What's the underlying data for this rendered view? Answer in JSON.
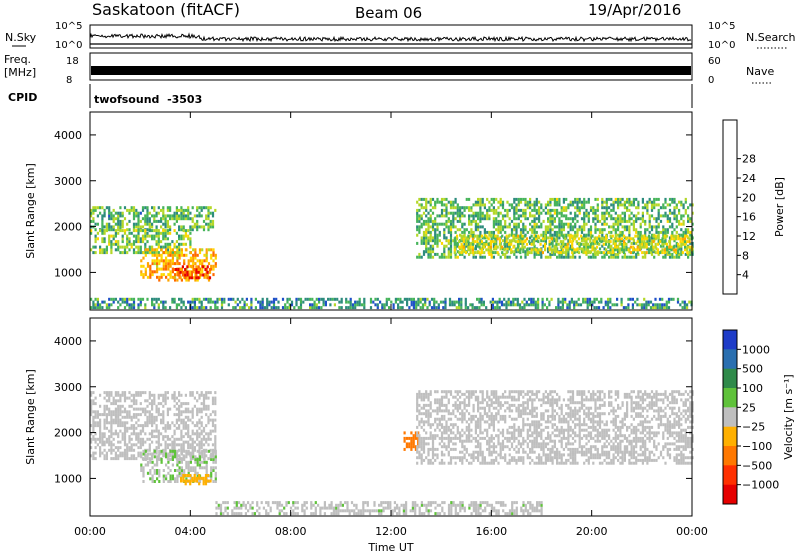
{
  "header": {
    "station": "Saskatoon (fitACF)",
    "beam": "Beam 06",
    "date": "19/Apr/2016"
  },
  "noise_panel": {
    "left_label": "N.Sky",
    "right_label": "N.Search",
    "left_tick_top": "10^5",
    "left_tick_bottom": "10^0",
    "right_tick_top": "10^5",
    "right_tick_bottom": "10^0"
  },
  "freq_panel": {
    "left_label": "Freq.",
    "left_unit": "[MHz]",
    "left_tick_top": "18",
    "left_tick_bottom": "8",
    "right_label": "Nave",
    "right_tick_top": "60",
    "right_tick_bottom": "0"
  },
  "cpid_panel": {
    "label": "CPID",
    "value": "twofsound  -3503"
  },
  "axes": {
    "xlabel": "Time UT",
    "xticks": [
      "00:00",
      "04:00",
      "08:00",
      "12:00",
      "16:00",
      "20:00",
      "00:00"
    ],
    "ylabel": "Slant Range [km]",
    "yticks": [
      "1000",
      "2000",
      "3000",
      "4000"
    ]
  },
  "power_colorbar": {
    "label": "Power [dB]",
    "ticks": [
      "4",
      "8",
      "12",
      "16",
      "20",
      "24",
      "28"
    ],
    "colors": [
      "#1414ff",
      "#1e50c8",
      "#2d8c7d",
      "#46b45a",
      "#b4d728",
      "#ffd700",
      "#ffa500",
      "#ff6a00",
      "#e60000"
    ]
  },
  "velocity_colorbar": {
    "label": "Velocity [m s⁻¹]",
    "ticks": [
      "1000",
      "500",
      "100",
      "25",
      "−25",
      "−100",
      "−500",
      "−1000"
    ],
    "colors": [
      "#1e3cc8",
      "#2a6fb0",
      "#2f8a4a",
      "#5fc23a",
      "#bfbfbf",
      "#ffb000",
      "#ff7800",
      "#ff3000",
      "#e60000"
    ]
  },
  "chart_data": [
    {
      "type": "heatmap",
      "title": "Power",
      "xlabel": "Time UT",
      "ylabel": "Slant Range [km]",
      "xlim": [
        0,
        24
      ],
      "ylim": [
        180,
        4500
      ],
      "colorbar_label": "Power [dB]",
      "colorbar_range": [
        0,
        32
      ],
      "regions": [
        {
          "t0": 0.0,
          "t1": 5.0,
          "r0": 1900,
          "r1": 2400,
          "value": 12
        },
        {
          "t0": 0.0,
          "t1": 4.0,
          "r0": 1400,
          "r1": 1900,
          "value": 14
        },
        {
          "t0": 2.0,
          "t1": 5.0,
          "r0": 800,
          "r1": 1500,
          "value": 22
        },
        {
          "t0": 3.3,
          "t1": 4.8,
          "r0": 850,
          "r1": 1100,
          "value": 28
        },
        {
          "t0": 13.0,
          "t1": 24.0,
          "r0": 1300,
          "r1": 2600,
          "value": 13
        },
        {
          "t0": 14.5,
          "t1": 24.0,
          "r0": 1400,
          "r1": 1800,
          "value": 17
        },
        {
          "t0": 0.0,
          "t1": 24.0,
          "r0": 200,
          "r1": 400,
          "value": 10
        }
      ]
    },
    {
      "type": "heatmap",
      "title": "Velocity",
      "xlabel": "Time UT",
      "ylabel": "Slant Range [km]",
      "xlim": [
        0,
        24
      ],
      "ylim": [
        180,
        4500
      ],
      "colorbar_label": "Velocity [m s⁻¹]",
      "colorbar_range": [
        -1000,
        1000
      ],
      "regions": [
        {
          "t0": 0.0,
          "t1": 5.0,
          "r0": 1400,
          "r1": 2900,
          "value": 0
        },
        {
          "t0": 2.0,
          "t1": 5.0,
          "r0": 900,
          "r1": 1600,
          "value": 80
        },
        {
          "t0": 3.5,
          "t1": 4.8,
          "r0": 850,
          "r1": 1050,
          "value": -200
        },
        {
          "t0": 12.5,
          "t1": 13.1,
          "r0": 1600,
          "r1": 2000,
          "value": -400
        },
        {
          "t0": 13.0,
          "t1": 24.0,
          "r0": 1300,
          "r1": 2900,
          "value": 0
        },
        {
          "t0": 5.0,
          "t1": 18.0,
          "r0": 200,
          "r1": 450,
          "value": 60
        }
      ]
    }
  ]
}
